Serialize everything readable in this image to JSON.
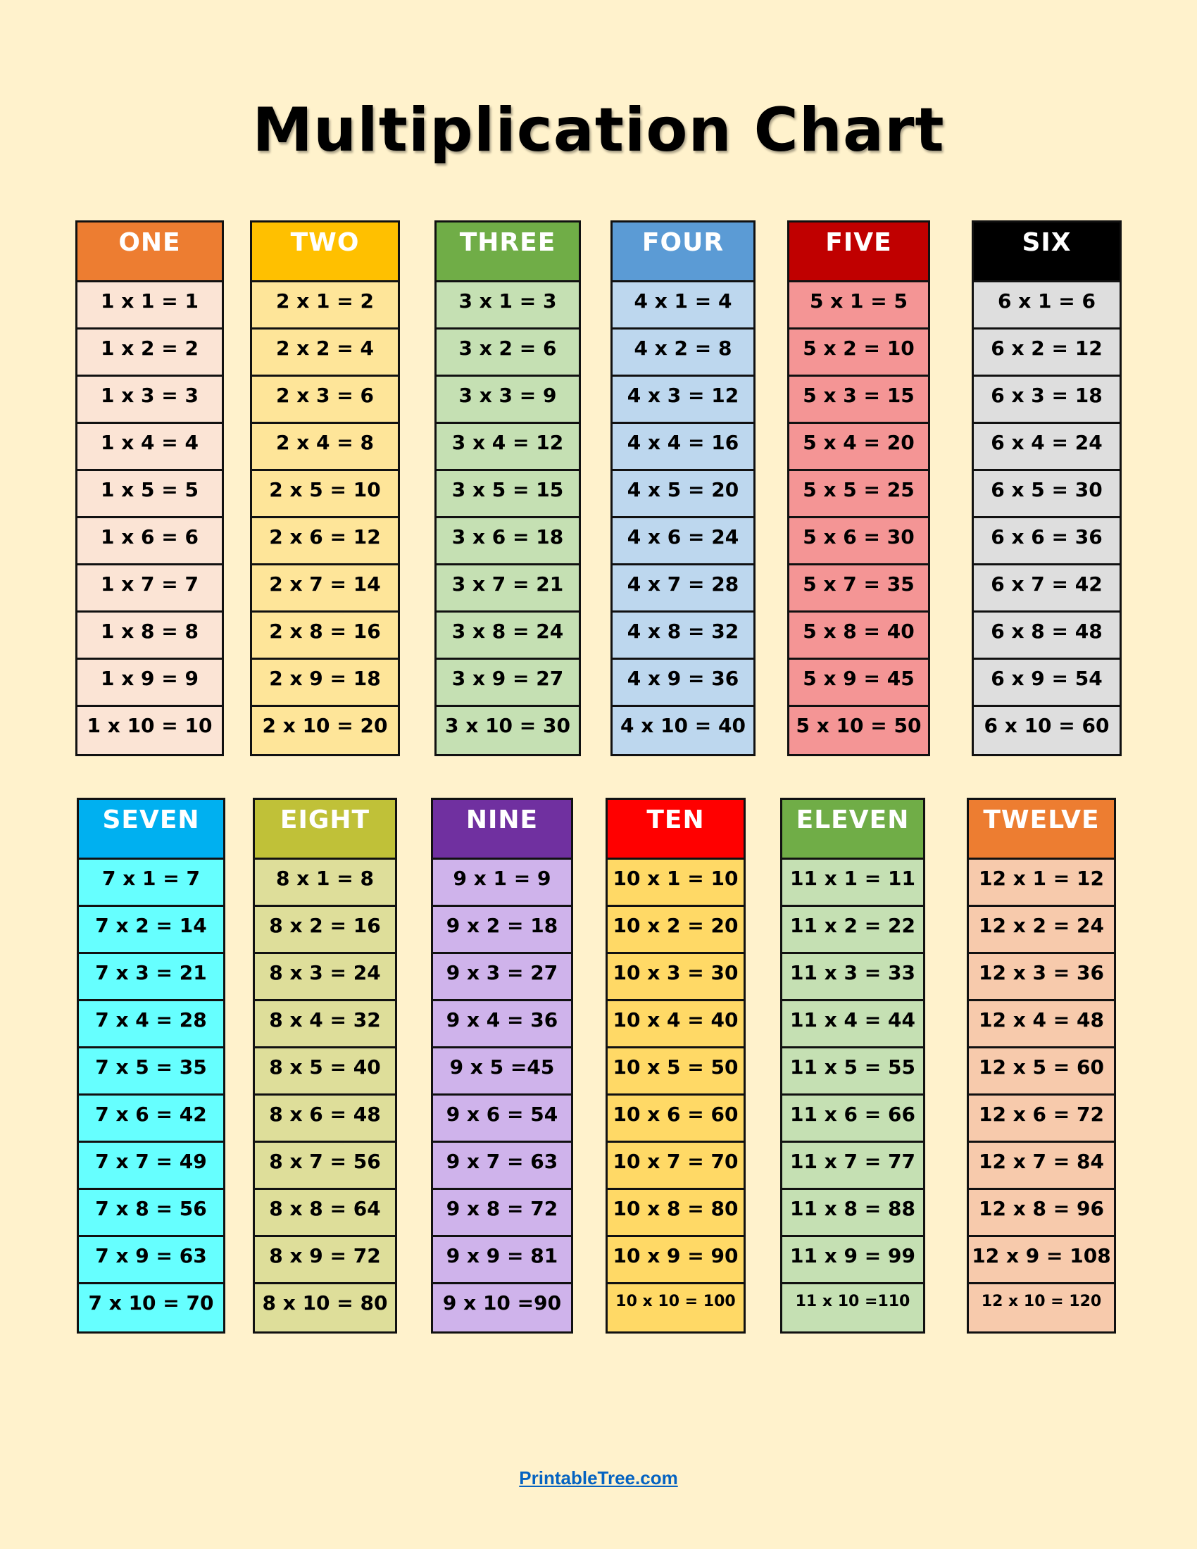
{
  "title": "Multiplication Chart",
  "background": "#fff2cc",
  "tables": [
    {
      "header": "ONE",
      "header_color": "#ed7d31",
      "cell_color": "#fbe4d5",
      "rows": [
        "1 x 1 = 1",
        "1 x 2 = 2",
        "1 x 3 = 3",
        "1 x 4 = 4",
        "1 x 5 = 5",
        "1 x 6 = 6",
        "1 x 7 = 7",
        "1 x 8 = 8",
        "1 x 9 = 9",
        "1 x 10 = 10"
      ]
    },
    {
      "header": "TWO",
      "header_color": "#ffc000",
      "cell_color": "#fee599",
      "rows": [
        "2 x 1 = 2",
        "2 x 2 = 4",
        "2 x 3 = 6",
        "2 x 4 = 8",
        "2 x 5 = 10",
        "2 x 6 = 12",
        "2 x 7 = 14",
        "2 x 8 = 16",
        "2 x 9 = 18",
        "2 x 10 = 20"
      ]
    },
    {
      "header": "THREE",
      "header_color": "#70ad47",
      "cell_color": "#c5e0b3",
      "rows": [
        "3 x 1 = 3",
        "3 x 2 = 6",
        "3 x 3 = 9",
        "3 x 4 = 12",
        "3 x 5 = 15",
        "3 x 6 = 18",
        "3 x 7 = 21",
        "3 x 8 = 24",
        "3 x 9 = 27",
        "3 x 10 = 30"
      ]
    },
    {
      "header": "FOUR",
      "header_color": "#5b9bd5",
      "cell_color": "#bdd7ee",
      "rows": [
        "4 x 1 = 4",
        "4 x 2 = 8",
        "4 x 3 = 12",
        "4 x 4 = 16",
        "4 x 5 = 20",
        "4 x 6 = 24",
        "4 x 7 = 28",
        "4 x 8 = 32",
        "4 x 9 = 36",
        "4 x 10 = 40"
      ]
    },
    {
      "header": "FIVE",
      "header_color": "#c00000",
      "cell_color": "#f49595",
      "rows": [
        "5 x 1 = 5",
        "5 x 2 = 10",
        "5 x 3 = 15",
        "5 x 4 = 20",
        "5 x 5 = 25",
        "5 x 6 = 30",
        "5 x 7 = 35",
        "5 x 8 = 40",
        "5 x 9 = 45",
        "5 x 10 = 50"
      ]
    },
    {
      "header": "SIX",
      "header_color": "#000000",
      "cell_color": "#dedede",
      "rows": [
        "6 x 1 = 6",
        "6 x 2 = 12",
        "6 x 3 = 18",
        "6 x 4 = 24",
        "6 x 5 = 30",
        "6 x 6 = 36",
        "6 x 7 = 42",
        "6 x 8 = 48",
        "6 x 9 = 54",
        "6 x 10 = 60"
      ]
    },
    {
      "header": "SEVEN",
      "header_color": "#00b0f0",
      "cell_color": "#66ffff",
      "rows": [
        "7 x 1 = 7",
        "7 x 2 = 14",
        "7 x 3 = 21",
        "7 x 4 = 28",
        "7 x 5 = 35",
        "7 x 6 = 42",
        "7 x 7 = 49",
        "7 x 8 = 56",
        "7 x 9 = 63",
        "7 x 10 = 70"
      ]
    },
    {
      "header": "EIGHT",
      "header_color": "#c0c138",
      "cell_color": "#dede9a",
      "rows": [
        "8 x 1 = 8",
        "8 x 2 = 16",
        "8 x 3 = 24",
        "8 x 4 = 32",
        "8 x 5 = 40",
        "8 x 6 = 48",
        "8 x 7 = 56",
        "8 x 8 = 64",
        "8 x 9 = 72",
        "8 x 10 = 80"
      ]
    },
    {
      "header": "NINE",
      "header_color": "#7030a0",
      "cell_color": "#cfb3eb",
      "rows": [
        "9 x 1 = 9",
        "9 x 2 = 18",
        "9 x 3 = 27",
        "9 x 4 = 36",
        "9 x 5 =45",
        "9 x 6 = 54",
        "9 x 7 = 63",
        "9 x 8 = 72",
        "9 x 9 = 81",
        "9 x 10 =90"
      ]
    },
    {
      "header": "TEN",
      "header_color": "#ff0000",
      "cell_color": "#ffd966",
      "rows": [
        "10 x 1 = 10",
        "10 x 2 = 20",
        "10 x 3 = 30",
        "10 x 4 = 40",
        "10 x 5 = 50",
        "10 x 6 = 60",
        "10 x 7 = 70",
        "10 x 8 = 80",
        "10 x 9 = 90",
        "10 x 10 = 100"
      ]
    },
    {
      "header": "ELEVEN",
      "header_color": "#70ad47",
      "cell_color": "#c5e0b3",
      "rows": [
        "11 x 1 = 11",
        "11 x 2 = 22",
        "11 x 3 = 33",
        "11 x 4 = 44",
        "11 x 5 = 55",
        "11 x 6 = 66",
        "11 x 7 = 77",
        "11 x 8 = 88",
        "11 x 9 = 99",
        "11 x 10 =110"
      ]
    },
    {
      "header": "TWELVE",
      "header_color": "#ed7d31",
      "cell_color": "#f7caac",
      "rows": [
        "12 x 1 = 12",
        "12 x 2 = 24",
        "12 x 3 = 36",
        "12 x 4 = 48",
        "12 x 5 = 60",
        "12 x 6 = 72",
        "12 x 7 = 84",
        "12 x 8 = 96",
        "12 x 9 = 108",
        "12 x 10 = 120"
      ]
    }
  ],
  "footer": {
    "link_text": "PrintableTree.com",
    "link_color": "#0563c1"
  }
}
